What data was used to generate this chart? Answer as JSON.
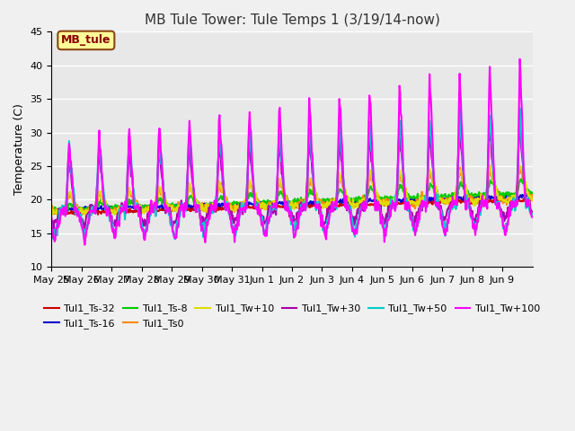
{
  "title": "MB Tule Tower: Tule Temps 1 (3/19/14-now)",
  "ylabel": "Temperature (C)",
  "ylim": [
    10,
    45
  ],
  "yticks": [
    10,
    15,
    20,
    25,
    30,
    35,
    40,
    45
  ],
  "x_labels": [
    "May 25",
    "May 26",
    "May 27",
    "May 28",
    "May 29",
    "May 30",
    "May 31",
    "Jun 1",
    "Jun 2",
    "Jun 3",
    "Jun 4",
    "Jun 5",
    "Jun 6",
    "Jun 7",
    "Jun 8",
    "Jun 9"
  ],
  "annotation_label": "MB_tule",
  "annotation_box_facecolor": "#ffff99",
  "annotation_box_edgecolor": "#8B4513",
  "annotation_text_color": "#8B0000",
  "series": [
    {
      "label": "Tul1_Ts-32",
      "color": "#cc0000",
      "lw": 1.5
    },
    {
      "label": "Tul1_Ts-16",
      "color": "#0000cc",
      "lw": 1.5
    },
    {
      "label": "Tul1_Ts-8",
      "color": "#00cc00",
      "lw": 1.5
    },
    {
      "label": "Tul1_Ts0",
      "color": "#ff8800",
      "lw": 1.5
    },
    {
      "label": "Tul1_Tw+10",
      "color": "#dddd00",
      "lw": 1.5
    },
    {
      "label": "Tul1_Tw+30",
      "color": "#aa00aa",
      "lw": 1.5
    },
    {
      "label": "Tul1_Tw+50",
      "color": "#00cccc",
      "lw": 1.5
    },
    {
      "label": "Tul1_Tw+100",
      "color": "#ff00ff",
      "lw": 1.5
    }
  ],
  "background_color": "#f0f0f0",
  "plot_bg_color": "#e8e8e8",
  "grid_color": "#ffffff"
}
